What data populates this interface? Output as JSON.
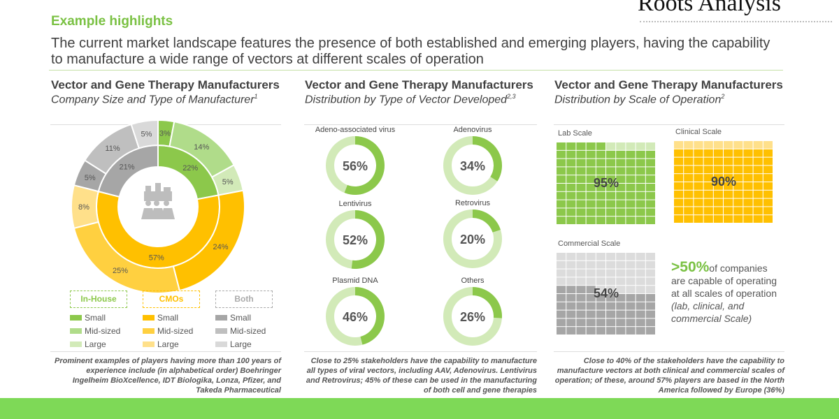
{
  "header": {
    "title": "Example highlights",
    "subtitle": "The current market landscape features the presence of both established and emerging players, having the capability to manufacture a wide range of vectors at different scales of operation",
    "logo": "Roots Analysis"
  },
  "colors": {
    "accent": "#7ac143",
    "band": "#7ed957"
  },
  "panel1": {
    "title": "Vector and Gene Therapy Manufacturers",
    "subtitle": "Company Size and Type of Manufacturer",
    "sup": "1",
    "icon": "factory-people-icon",
    "inner": [
      {
        "label": "22%",
        "value": 22,
        "color": "#8cc84b"
      },
      {
        "label": "57%",
        "value": 57,
        "color": "#ffc000"
      },
      {
        "label": "21%",
        "value": 21,
        "color": "#a6a6a6"
      }
    ],
    "outer": [
      {
        "label": "3%",
        "value": 3,
        "color": "#8cc84b"
      },
      {
        "label": "14%",
        "value": 14,
        "color": "#b0dc8a"
      },
      {
        "label": "5%",
        "value": 5,
        "color": "#d2eab8"
      },
      {
        "label": "24%",
        "value": 24,
        "color": "#ffc000"
      },
      {
        "label": "25%",
        "value": 25,
        "color": "#ffd040"
      },
      {
        "label": "8%",
        "value": 8,
        "color": "#ffe08a"
      },
      {
        "label": "5%",
        "value": 5,
        "color": "#a6a6a6"
      },
      {
        "label": "11%",
        "value": 11,
        "color": "#bfbfbf"
      },
      {
        "label": "5%",
        "value": 5,
        "color": "#d9d9d9"
      }
    ],
    "legend": [
      {
        "group": "In-House",
        "color": "#8cc84b",
        "items": [
          {
            "label": "Small",
            "color": "#8cc84b"
          },
          {
            "label": "Mid-sized",
            "color": "#b0dc8a"
          },
          {
            "label": "Large",
            "color": "#d2eab8"
          }
        ]
      },
      {
        "group": "CMOs",
        "color": "#ffc000",
        "items": [
          {
            "label": "Small",
            "color": "#ffc000"
          },
          {
            "label": "Mid-sized",
            "color": "#ffd040"
          },
          {
            "label": "Large",
            "color": "#ffe08a"
          }
        ]
      },
      {
        "group": "Both",
        "color": "#aaaaaa",
        "items": [
          {
            "label": "Small",
            "color": "#a6a6a6"
          },
          {
            "label": "Mid-sized",
            "color": "#bfbfbf"
          },
          {
            "label": "Large",
            "color": "#d9d9d9"
          }
        ]
      }
    ],
    "note": "Prominent examples of players having more than 100 years of experience  include (in alphabetical order) Boehringer Ingelheim BioXcellence, IDT Biologika, Lonza, Pfizer, and Takeda Pharmaceutical"
  },
  "panel2": {
    "title": "Vector and Gene Therapy Manufacturers",
    "subtitle": "Distribution by Type of Vector Developed",
    "sup": "2,3",
    "vectors": [
      {
        "name": "Adeno-associated virus",
        "value": 56,
        "label": "56%"
      },
      {
        "name": "Adenovirus",
        "value": 34,
        "label": "34%"
      },
      {
        "name": "Lentivirus",
        "value": 52,
        "label": "52%"
      },
      {
        "name": "Retrovirus",
        "value": 20,
        "label": "20%"
      },
      {
        "name": "Plasmid DNA",
        "value": 46,
        "label": "46%"
      },
      {
        "name": "Others",
        "value": 26,
        "label": "26%"
      }
    ],
    "note": "Close to 25% stakeholders  have the capability to manufacture all types of viral vectors, including AAV, Adenovirus. Lentivirus and Retrovirus; 45% of these can be used in the manufacturing of both cell and gene therapies"
  },
  "panel3": {
    "title": "Vector and Gene Therapy Manufacturers",
    "subtitle": "Distribution by Scale of Operation",
    "sup": "2",
    "scales": [
      {
        "name": "Lab Scale",
        "value": 95,
        "label": "95%",
        "on": "#8cc84b",
        "off": "#d2eab8"
      },
      {
        "name": "Clinical Scale",
        "value": 90,
        "label": "90%",
        "on": "#ffc000",
        "off": "#ffe08a"
      },
      {
        "name": "Commercial Scale",
        "value": 54,
        "label": "54%",
        "on": "#a6a6a6",
        "off": "#dcdcdc"
      }
    ],
    "highlight": {
      "value": ">50%",
      "text": "of  companies are capable of operating at all scales of operation",
      "italic": "(lab, clinical, and commercial Scale)"
    },
    "note": "Close to 40% of the stakeholders  have the capability to manufacture vectors at both clinical and commercial scales of operation; of these, around 57% players are based in the North America followed by Europe (36%)"
  }
}
